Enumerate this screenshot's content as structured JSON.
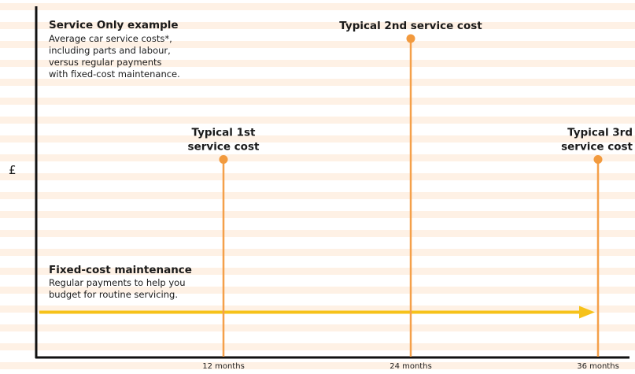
{
  "chart_data": {
    "type": "lollipop",
    "ylabel": "£",
    "x_unit": "months",
    "x_ticks": [
      {
        "value": 12,
        "label": "12 months"
      },
      {
        "value": 24,
        "label": "24 months"
      },
      {
        "value": 36,
        "label": "36 months"
      }
    ],
    "service_costs": [
      {
        "month": 12,
        "value": 0.62,
        "label_lines": [
          "Typical 1st",
          "service cost"
        ]
      },
      {
        "month": 24,
        "value": 1.0,
        "label_lines": [
          "Typical 2nd service cost"
        ]
      },
      {
        "month": 36,
        "value": 0.62,
        "label_lines": [
          "Typical 3rd",
          "service cost"
        ]
      }
    ],
    "fixed_cost_level": 0.14,
    "annotations": {
      "service_only": {
        "title": "Service Only example",
        "lines": [
          "Average car service costs*,",
          "including parts and labour,",
          "versus regular payments",
          "with fixed-cost maintenance."
        ]
      },
      "fixed_cost": {
        "title": "Fixed-cost maintenance",
        "lines": [
          "Regular payments to help you",
          "budget for routine servicing."
        ]
      }
    },
    "colors": {
      "stem": "#f4a04a",
      "dot": "#f29a3e",
      "arrow": "#f6c21a",
      "axis": "#111111",
      "stripe": "#fde6cf"
    }
  }
}
